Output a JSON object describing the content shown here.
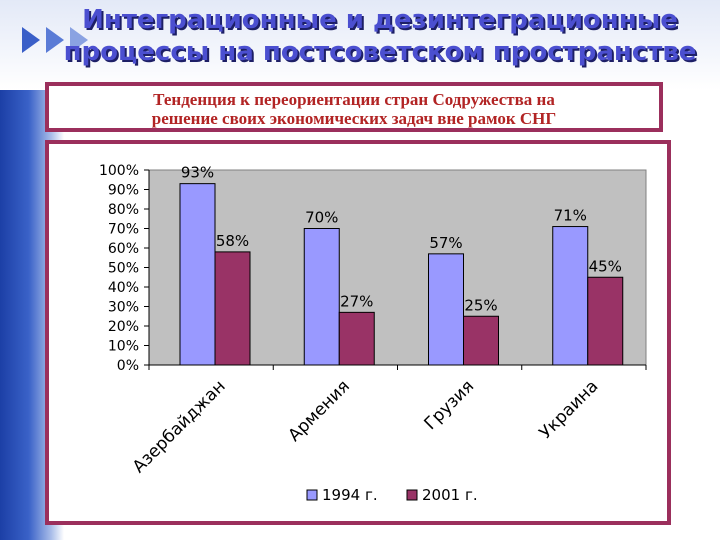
{
  "slide": {
    "title_line1": "Интеграционные и дезинтеграционные",
    "title_line2": "процессы на постсоветском пространстве",
    "subtitle_line1": "Тенденция к переориентации стран Содружества на",
    "subtitle_line2": "решение своих экономических задач вне рамок СНГ"
  },
  "chart_data": {
    "type": "bar",
    "categories": [
      "Азербайджан",
      "Армения",
      "Грузия",
      "Украина"
    ],
    "series": [
      {
        "name": "1994 г.",
        "values": [
          93,
          70,
          57,
          71
        ],
        "color": "#9999ff",
        "labels": [
          "93%",
          "70%",
          "57%",
          "71%"
        ]
      },
      {
        "name": "2001 г.",
        "values": [
          58,
          27,
          25,
          45
        ],
        "color": "#993366",
        "labels": [
          "58%",
          "27%",
          "25%",
          "45%"
        ]
      }
    ],
    "yticks": [
      "0%",
      "10%",
      "20%",
      "30%",
      "40%",
      "50%",
      "60%",
      "70%",
      "80%",
      "90%",
      "100%"
    ],
    "ylim": [
      0,
      100
    ],
    "plot_background": "#c0c0c0",
    "legend_position": "bottom",
    "grid": false
  }
}
